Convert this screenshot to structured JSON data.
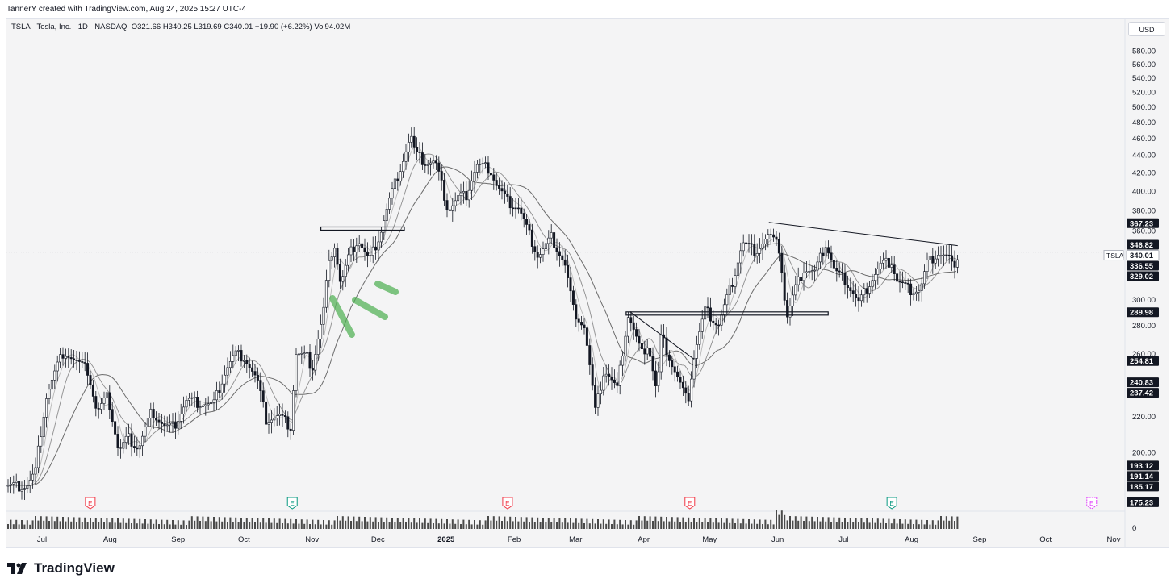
{
  "header": {
    "text": "TannerY created with TradingView.com, Aug 24, 2025 15:27 UTC-4"
  },
  "legend": {
    "symbol": "TSLA · Tesla, Inc. · 1D · NASDAQ",
    "open": "O321.66",
    "high": "H340.25",
    "low": "L319.69",
    "close": "C340.01",
    "change": "+19.90 (+6.22%)",
    "volume": "Vol94.02M"
  },
  "currency_button": "USD",
  "footer": {
    "brand": "TradingView"
  },
  "colors": {
    "candle": "#131722",
    "ma_dark": "#6b6b6b",
    "ma_light": "#b8b8b8",
    "highlight": "#4caf50",
    "earnings_red": "#f23645",
    "earnings_green": "#089981",
    "earnings_purple": "#e040fb"
  },
  "icons": {
    "earnings": "earnings-marker-icon",
    "logo": "tradingview-logo-icon"
  },
  "chart_data": {
    "type": "candlestick",
    "symbol": "TSLA",
    "y_axis": {
      "scale": "log",
      "range": [
        175,
        600
      ],
      "ticks": [
        "580.00",
        "560.00",
        "540.00",
        "520.00",
        "500.00",
        "480.00",
        "460.00",
        "440.00",
        "420.00",
        "400.00",
        "380.00",
        "360.00",
        "300.00",
        "280.00",
        "260.00",
        "220.00",
        "200.00"
      ]
    },
    "x_axis": {
      "labels": [
        "Jul",
        "Aug",
        "Sep",
        "Oct",
        "Nov",
        "Dec",
        "2025",
        "Feb",
        "Mar",
        "Apr",
        "May",
        "Jun",
        "Jul",
        "Aug",
        "Sep",
        "Oct",
        "Nov"
      ]
    },
    "price_labels": [
      {
        "value": "367.23",
        "style": "dark"
      },
      {
        "value": "346.82",
        "style": "dark"
      },
      {
        "value": "340.01",
        "style": "light",
        "name": "TSLA"
      },
      {
        "value": "336.55",
        "style": "dark"
      },
      {
        "value": "329.02",
        "style": "dark"
      },
      {
        "value": "289.98",
        "style": "dark"
      },
      {
        "value": "254.81",
        "style": "dark"
      },
      {
        "value": "240.83",
        "style": "dark"
      },
      {
        "value": "237.42",
        "style": "dark"
      },
      {
        "value": "193.12",
        "style": "dark"
      },
      {
        "value": "191.14",
        "style": "dark"
      },
      {
        "value": "185.17",
        "style": "dark"
      },
      {
        "value": "175.23",
        "style": "dark"
      }
    ],
    "price_series": [
      [
        "2024-06-24",
        183
      ],
      [
        "2024-06-28",
        190
      ],
      [
        "2024-07-03",
        232
      ],
      [
        "2024-07-08",
        252
      ],
      [
        "2024-07-11",
        262
      ],
      [
        "2024-07-16",
        255
      ],
      [
        "2024-07-22",
        248
      ],
      [
        "2024-07-26",
        222
      ],
      [
        "2024-07-31",
        232
      ],
      [
        "2024-08-05",
        200
      ],
      [
        "2024-08-09",
        208
      ],
      [
        "2024-08-14",
        202
      ],
      [
        "2024-08-20",
        223
      ],
      [
        "2024-08-26",
        214
      ],
      [
        "2024-08-30",
        214
      ],
      [
        "2024-09-05",
        230
      ],
      [
        "2024-09-11",
        228
      ],
      [
        "2024-09-17",
        227
      ],
      [
        "2024-09-23",
        250
      ],
      [
        "2024-09-27",
        260
      ],
      [
        "2024-10-01",
        258
      ],
      [
        "2024-10-07",
        242
      ],
      [
        "2024-10-11",
        218
      ],
      [
        "2024-10-17",
        220
      ],
      [
        "2024-10-23",
        213
      ],
      [
        "2024-10-24",
        260
      ],
      [
        "2024-10-30",
        257
      ],
      [
        "2024-11-01",
        249
      ],
      [
        "2024-11-06",
        288
      ],
      [
        "2024-11-08",
        321
      ],
      [
        "2024-11-11",
        350
      ],
      [
        "2024-11-14",
        312
      ],
      [
        "2024-11-18",
        338
      ],
      [
        "2024-11-22",
        352
      ],
      [
        "2024-11-27",
        332
      ],
      [
        "2024-12-02",
        357
      ],
      [
        "2024-12-06",
        389
      ],
      [
        "2024-12-11",
        424
      ],
      [
        "2024-12-16",
        463
      ],
      [
        "2024-12-18",
        440
      ],
      [
        "2024-12-23",
        430
      ],
      [
        "2024-12-27",
        432
      ],
      [
        "2025-01-02",
        379
      ],
      [
        "2025-01-07",
        394
      ],
      [
        "2025-01-10",
        394
      ],
      [
        "2025-01-15",
        428
      ],
      [
        "2025-01-21",
        424
      ],
      [
        "2025-01-24",
        406
      ],
      [
        "2025-01-29",
        389
      ],
      [
        "2025-02-03",
        383
      ],
      [
        "2025-02-07",
        361
      ],
      [
        "2025-02-12",
        336
      ],
      [
        "2025-02-18",
        354
      ],
      [
        "2025-02-24",
        330
      ],
      [
        "2025-02-28",
        292
      ],
      [
        "2025-03-05",
        279
      ],
      [
        "2025-03-10",
        222
      ],
      [
        "2025-03-14",
        249
      ],
      [
        "2025-03-20",
        236
      ],
      [
        "2025-03-25",
        288
      ],
      [
        "2025-03-31",
        259
      ],
      [
        "2025-04-03",
        267
      ],
      [
        "2025-04-07",
        233
      ],
      [
        "2025-04-09",
        272
      ],
      [
        "2025-04-14",
        252
      ],
      [
        "2025-04-21",
        228
      ],
      [
        "2025-04-24",
        259
      ],
      [
        "2025-04-29",
        292
      ],
      [
        "2025-05-05",
        280
      ],
      [
        "2025-05-12",
        318
      ],
      [
        "2025-05-16",
        349
      ],
      [
        "2025-05-22",
        341
      ],
      [
        "2025-05-28",
        356
      ],
      [
        "2025-06-02",
        342
      ],
      [
        "2025-06-05",
        284
      ],
      [
        "2025-06-09",
        308
      ],
      [
        "2025-06-13",
        325
      ],
      [
        "2025-06-18",
        322
      ],
      [
        "2025-06-23",
        348
      ],
      [
        "2025-06-27",
        323
      ],
      [
        "2025-07-02",
        315
      ],
      [
        "2025-07-08",
        297
      ],
      [
        "2025-07-14",
        317
      ],
      [
        "2025-07-18",
        329
      ],
      [
        "2025-07-23",
        332
      ],
      [
        "2025-07-25",
        316
      ],
      [
        "2025-07-31",
        308
      ],
      [
        "2025-08-05",
        308
      ],
      [
        "2025-08-08",
        330
      ],
      [
        "2025-08-13",
        340
      ],
      [
        "2025-08-18",
        335
      ],
      [
        "2025-08-21",
        320
      ],
      [
        "2025-08-22",
        340
      ]
    ],
    "volume_axis": {
      "label": "0"
    },
    "earnings_markers": [
      {
        "date": "2024-07-23",
        "result": "miss"
      },
      {
        "date": "2024-10-23",
        "result": "beat"
      },
      {
        "date": "2025-01-29",
        "result": "miss"
      },
      {
        "date": "2025-04-22",
        "result": "miss"
      },
      {
        "date": "2025-07-23",
        "result": "beat"
      },
      {
        "date": "2025-10-22",
        "result": "upcoming"
      }
    ],
    "earnings_label": "E",
    "annotations": {
      "horizontal_lines": [
        {
          "price": 362,
          "from": "2024-11-05",
          "to": "2024-12-13"
        },
        {
          "price": 289,
          "from": "2025-03-24",
          "to": "2025-06-24"
        }
      ],
      "trend_lines": [
        {
          "from": [
            "2025-05-28",
            368
          ],
          "to": [
            "2025-08-22",
            346
          ]
        },
        {
          "from": [
            "2025-03-26",
            290
          ],
          "to": [
            "2025-04-24",
            256
          ]
        }
      ]
    }
  }
}
